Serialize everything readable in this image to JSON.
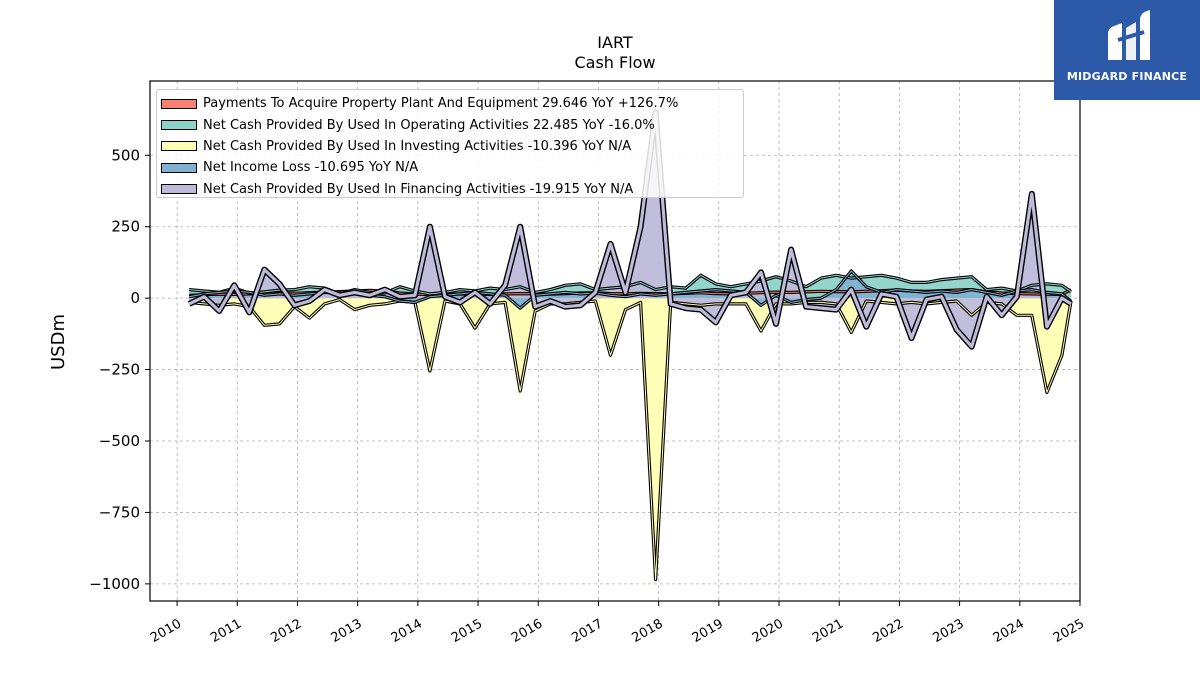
{
  "logo": {
    "text": "MIDGARD FINANCE",
    "background": "#2c5aa8",
    "icon": "mf-monogram-icon"
  },
  "chart_data": {
    "type": "area",
    "title": "IART",
    "subtitle": "Cash Flow",
    "ylabel": "USDm",
    "xlabel": "",
    "ylim": [
      -1060,
      760
    ],
    "xlim": [
      2009.55,
      2025.0
    ],
    "yticks": [
      500,
      250,
      0,
      -250,
      -500,
      -750,
      -1000
    ],
    "ytick_labels": [
      "500",
      "250",
      "0",
      "−250",
      "−500",
      "−750",
      "−1000"
    ],
    "xticks": [
      2010,
      2011,
      2012,
      2013,
      2014,
      2015,
      2016,
      2017,
      2018,
      2019,
      2020,
      2021,
      2022,
      2023,
      2024,
      2025
    ],
    "xtick_labels": [
      "2010",
      "2011",
      "2012",
      "2013",
      "2014",
      "2015",
      "2016",
      "2017",
      "2018",
      "2019",
      "2020",
      "2021",
      "2022",
      "2023",
      "2024",
      "2025"
    ],
    "grid": true,
    "legend_position": "top-left",
    "x": [
      2010.2,
      2010.45,
      2010.7,
      2010.95,
      2011.2,
      2011.45,
      2011.7,
      2011.95,
      2012.2,
      2012.45,
      2012.7,
      2012.95,
      2013.2,
      2013.45,
      2013.7,
      2013.95,
      2014.2,
      2014.45,
      2014.7,
      2014.95,
      2015.2,
      2015.45,
      2015.7,
      2015.95,
      2016.2,
      2016.45,
      2016.7,
      2016.95,
      2017.2,
      2017.45,
      2017.7,
      2017.95,
      2018.2,
      2018.45,
      2018.7,
      2018.95,
      2019.2,
      2019.45,
      2019.7,
      2019.95,
      2020.2,
      2020.45,
      2020.7,
      2020.95,
      2021.2,
      2021.45,
      2021.7,
      2021.95,
      2022.2,
      2022.45,
      2022.7,
      2022.95,
      2023.2,
      2023.45,
      2023.7,
      2023.95,
      2024.2,
      2024.45,
      2024.7,
      2024.85
    ],
    "series": [
      {
        "name": "Payments To Acquire Property Plant And Equipment",
        "legend_label": "Payments To Acquire Property Plant And Equipment  29.646 YoY +126.7%",
        "color": "#fb8072",
        "values": [
          10,
          12,
          14,
          13,
          15,
          16,
          18,
          17,
          19,
          21,
          23,
          25,
          27,
          24,
          18,
          14,
          12,
          13,
          15,
          14,
          13,
          15,
          16,
          15,
          14,
          16,
          18,
          19,
          16,
          15,
          17,
          16,
          15,
          17,
          19,
          16,
          15,
          17,
          19,
          21,
          20,
          22,
          24,
          23,
          22,
          24,
          26,
          28,
          25,
          24,
          26,
          28,
          30,
          22,
          18,
          16,
          15,
          14,
          13,
          29.646
        ]
      },
      {
        "name": "Net Cash Provided By Used In Operating Activities",
        "legend_label": "Net Cash Provided By Used In Operating Activities  22.485 YoY -16.0%",
        "color": "#8dd3c7",
        "values": [
          30,
          25,
          20,
          35,
          18,
          22,
          28,
          30,
          40,
          35,
          15,
          30,
          20,
          18,
          40,
          25,
          15,
          20,
          30,
          25,
          35,
          30,
          40,
          20,
          30,
          45,
          50,
          30,
          35,
          40,
          55,
          30,
          40,
          35,
          80,
          50,
          40,
          50,
          60,
          75,
          60,
          40,
          70,
          80,
          70,
          75,
          80,
          70,
          55,
          55,
          65,
          70,
          75,
          30,
          35,
          25,
          45,
          50,
          45,
          22.485
        ]
      },
      {
        "name": "Net Cash Provided By Used In Investing Activities",
        "legend_label": "Net Cash Provided By Used In Investing Activities  -10.396 YoY N/A",
        "color": "#ffffb3",
        "values": [
          -15,
          -20,
          -25,
          -20,
          -30,
          -95,
          -90,
          -30,
          -70,
          -20,
          -5,
          -40,
          -25,
          -20,
          -10,
          -15,
          -255,
          -10,
          -20,
          -105,
          -20,
          -15,
          -325,
          -45,
          -20,
          -20,
          -15,
          -10,
          -200,
          -40,
          -15,
          -985,
          -15,
          -20,
          -25,
          -20,
          -20,
          -20,
          -115,
          -20,
          -20,
          -15,
          -15,
          -20,
          -120,
          -10,
          -15,
          -20,
          -15,
          -20,
          -15,
          -10,
          -60,
          -15,
          -20,
          -60,
          -60,
          -330,
          -200,
          -10.396
        ]
      },
      {
        "name": "Net Income Loss",
        "legend_label": "Net Income Loss  -10.695 YoY N/A",
        "color": "#80b1d3",
        "values": [
          5,
          15,
          20,
          25,
          20,
          10,
          15,
          10,
          15,
          20,
          18,
          15,
          10,
          5,
          -10,
          -15,
          5,
          10,
          15,
          20,
          15,
          10,
          -35,
          10,
          15,
          20,
          15,
          18,
          10,
          5,
          15,
          10,
          15,
          20,
          25,
          30,
          25,
          20,
          -25,
          10,
          -15,
          -5,
          0,
          30,
          95,
          40,
          20,
          30,
          25,
          20,
          25,
          20,
          30,
          20,
          10,
          25,
          30,
          20,
          15,
          -10.695
        ]
      },
      {
        "name": "Net Cash Provided By Used In Financing Activities",
        "legend_label": "Net Cash Provided By Used In Financing Activities  -19.915 YoY N/A",
        "color": "#bebada",
        "values": [
          -20,
          5,
          -45,
          45,
          -50,
          100,
          50,
          -25,
          -10,
          30,
          10,
          20,
          10,
          30,
          5,
          10,
          250,
          5,
          -15,
          20,
          -20,
          45,
          250,
          -30,
          -10,
          -30,
          -25,
          20,
          190,
          20,
          250,
          650,
          -20,
          -35,
          -40,
          -85,
          10,
          20,
          90,
          -90,
          170,
          -30,
          -35,
          -40,
          30,
          -100,
          15,
          5,
          -140,
          -5,
          5,
          -110,
          -170,
          5,
          -60,
          5,
          365,
          -100,
          0,
          -19.915
        ]
      }
    ]
  }
}
